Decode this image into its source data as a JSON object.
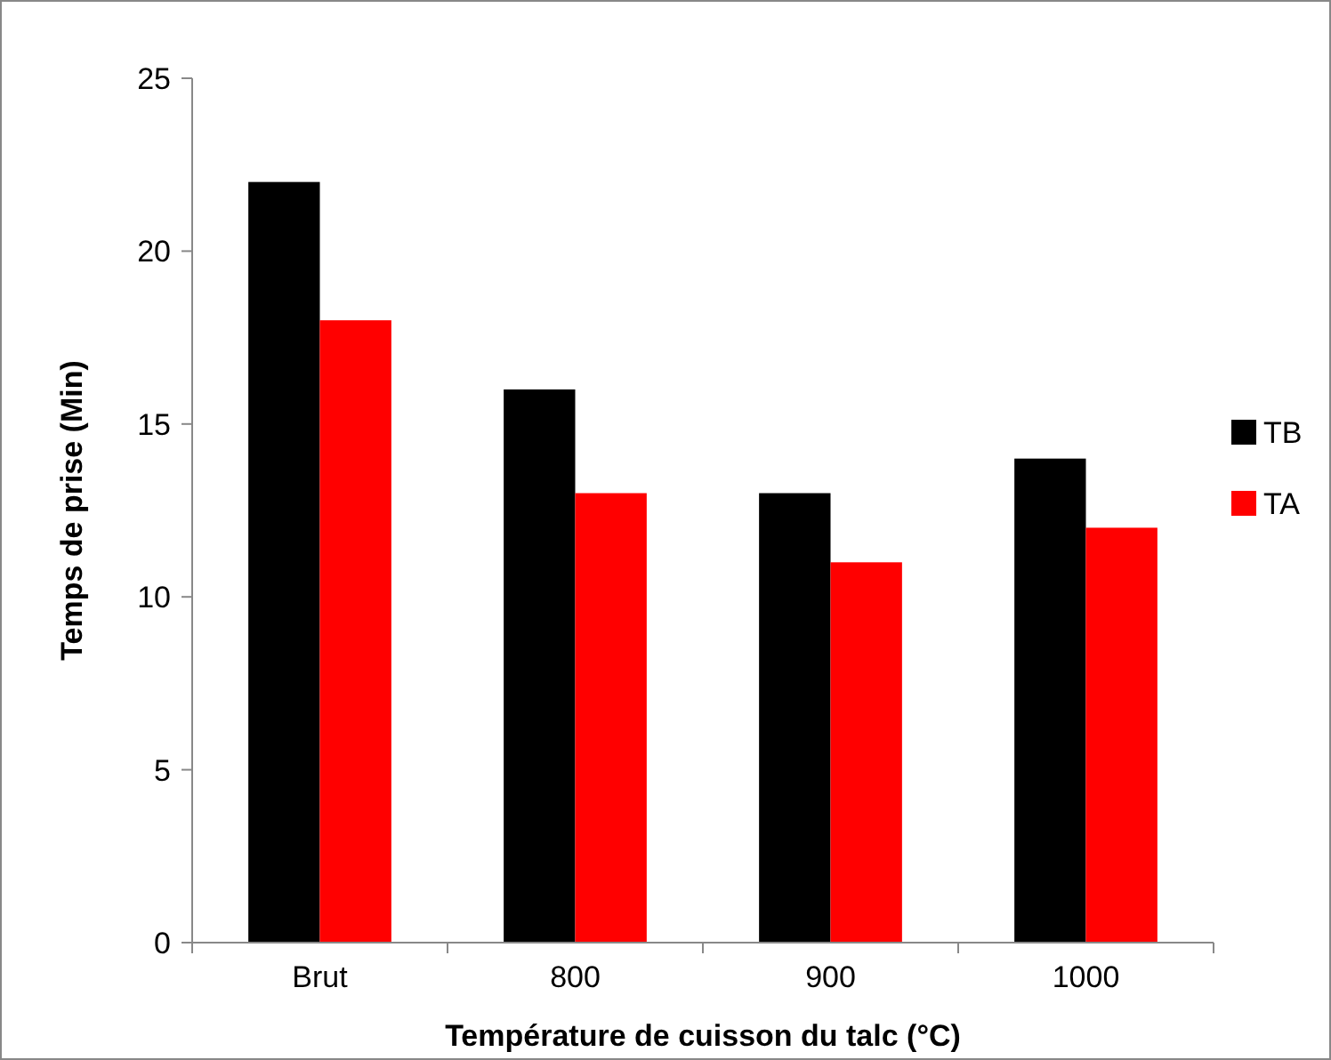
{
  "chart_data": {
    "type": "bar",
    "xlabel": "Température de cuisson du talc (°C)",
    "ylabel": "Temps de prise (Min)",
    "categories": [
      "Brut",
      "800",
      "900",
      "1000"
    ],
    "series": [
      {
        "name": "TB",
        "color": "#000000",
        "values": [
          22,
          16,
          13,
          14
        ]
      },
      {
        "name": "TA",
        "color": "#ff0000",
        "values": [
          18,
          13,
          11,
          12
        ]
      }
    ],
    "ylim": [
      0,
      25
    ],
    "yticks": [
      0,
      5,
      10,
      15,
      20,
      25
    ],
    "grid": false,
    "legend": "right"
  }
}
